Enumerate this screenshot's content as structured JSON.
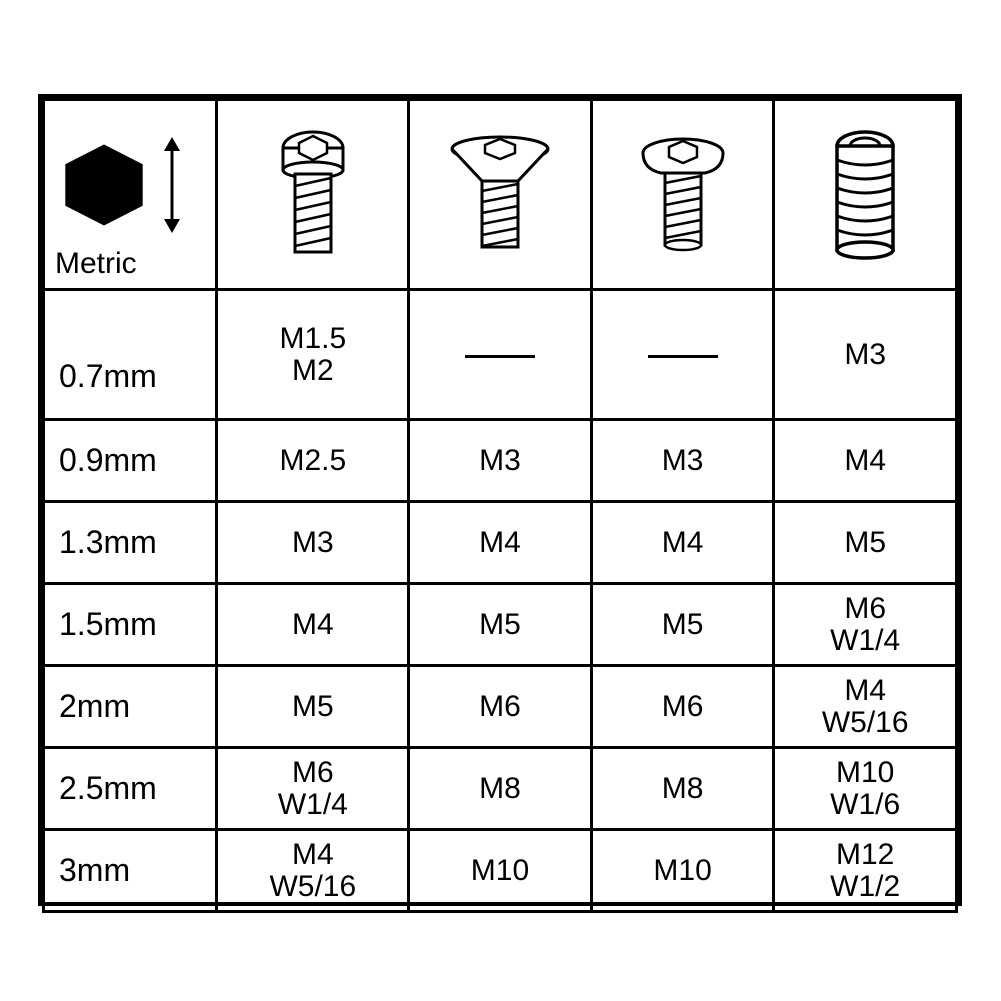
{
  "table": {
    "type": "table",
    "border_color": "#000000",
    "background_color": "#ffffff",
    "text_color": "#000000",
    "outer_border_width": 4,
    "cell_border_width": 3,
    "font_family": "Arial",
    "cell_fontsize": 30,
    "size_col_fontsize": 32,
    "column_widths_pct": [
      19,
      21,
      20,
      20,
      20
    ],
    "header": {
      "metric_label": "Metric",
      "icons": [
        "hexagon",
        "cap-head-screw",
        "countersunk-screw",
        "button-head-screw",
        "set-screw"
      ]
    },
    "rows": [
      {
        "size": "0.7mm",
        "cells": [
          "M1.5\nM2",
          "—",
          "—",
          "M3"
        ]
      },
      {
        "size": "0.9mm",
        "cells": [
          "M2.5",
          "M3",
          "M3",
          "M4"
        ]
      },
      {
        "size": "1.3mm",
        "cells": [
          "M3",
          "M4",
          "M4",
          "M5"
        ]
      },
      {
        "size": "1.5mm",
        "cells": [
          "M4",
          "M5",
          "M5",
          "M6\nW1/4"
        ]
      },
      {
        "size": "2mm",
        "cells": [
          "M5",
          "M6",
          "M6",
          "M4\nW5/16"
        ]
      },
      {
        "size": "2.5mm",
        "cells": [
          "M6\nW1/4",
          "M8",
          "M8",
          "M10\nW1/6"
        ]
      },
      {
        "size": "3mm",
        "cells": [
          "M4\nW5/16",
          "M10",
          "M10",
          "M12\nW1/2"
        ]
      }
    ]
  }
}
